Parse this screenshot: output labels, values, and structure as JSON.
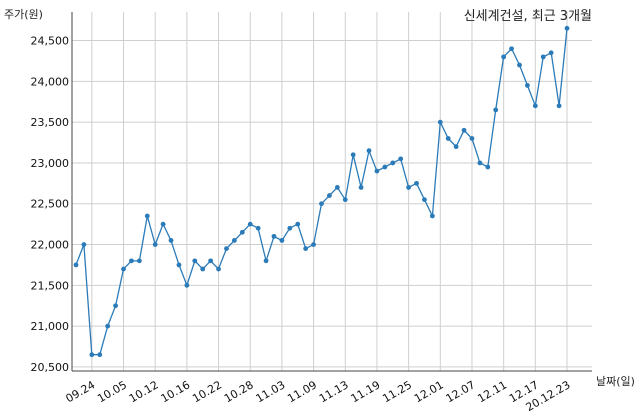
{
  "chart_data": {
    "type": "line",
    "title": "신세계건설, 최근 3개월",
    "xlabel": "날짜(일)",
    "ylabel": "주가(원)",
    "ylim": [
      20450,
      24850
    ],
    "yticks": [
      20500,
      21000,
      21500,
      22000,
      22500,
      23000,
      23500,
      24000,
      24500
    ],
    "ytick_labels": [
      "20,500",
      "21,000",
      "21,500",
      "22,000",
      "22,500",
      "23,000",
      "23,500",
      "24,000",
      "24,500"
    ],
    "xticks": [
      "09.24",
      "10.05",
      "10.12",
      "10.16",
      "10.22",
      "10.28",
      "11.03",
      "11.09",
      "11.13",
      "11.19",
      "11.25",
      "12.01",
      "12.07",
      "12.11",
      "12.17",
      "20.12.23"
    ],
    "xtick_index": [
      2,
      6,
      10,
      14,
      18,
      22,
      26,
      30,
      34,
      38,
      42,
      46,
      50,
      54,
      58,
      62
    ],
    "grid": true,
    "line_color": "#2b7bb9",
    "series": [
      {
        "values": [
          21750,
          22000,
          20650,
          20650,
          21000,
          21250,
          21700,
          21800,
          21800,
          22350,
          22000,
          22250,
          22050,
          21750,
          21500,
          21800,
          21700,
          21800,
          21700,
          21950,
          22050,
          22150,
          22250,
          22200,
          21800,
          22100,
          22050,
          22200,
          22250,
          21950,
          22000,
          22500,
          22600,
          22700,
          22550,
          23100,
          22700,
          23150,
          22900,
          22950,
          23000,
          23050,
          22700,
          22750,
          22550,
          22350,
          23500,
          23300,
          23200,
          23400,
          23300,
          23000,
          22950,
          23650,
          24300,
          24400,
          24200,
          23950,
          23700,
          24300,
          24350,
          23700,
          24650
        ]
      }
    ]
  }
}
